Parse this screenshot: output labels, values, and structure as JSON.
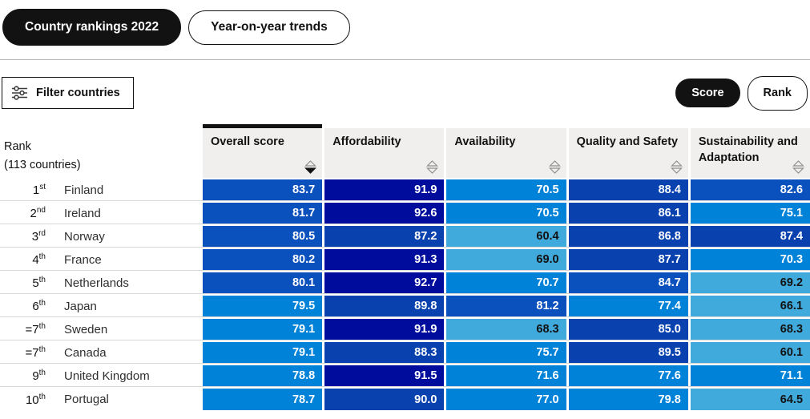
{
  "tabs": [
    {
      "label": "Country rankings 2022",
      "active": true
    },
    {
      "label": "Year-on-year trends",
      "active": false
    }
  ],
  "toolbar": {
    "filter_label": "Filter countries",
    "score_label": "Score",
    "rank_label": "Rank"
  },
  "table": {
    "rank_header_line1": "Rank",
    "rank_header_line2": "(113 countries)",
    "columns": [
      {
        "label": "Overall score",
        "sorted": true,
        "sort_direction": "desc"
      },
      {
        "label": "Affordability",
        "sorted": false
      },
      {
        "label": "Availability",
        "sorted": false
      },
      {
        "label": "Quality and Safety",
        "sorted": false
      },
      {
        "label": "Sustainability and Adaptation",
        "sorted": false
      }
    ],
    "rows": [
      {
        "rank": "1",
        "ordinal": "st",
        "country": "Finland",
        "scores": [
          "83.7",
          "91.9",
          "70.5",
          "88.4",
          "82.6"
        ]
      },
      {
        "rank": "2",
        "ordinal": "nd",
        "country": "Ireland",
        "scores": [
          "81.7",
          "92.6",
          "70.5",
          "86.1",
          "75.1"
        ]
      },
      {
        "rank": "3",
        "ordinal": "rd",
        "country": "Norway",
        "scores": [
          "80.5",
          "87.2",
          "60.4",
          "86.8",
          "87.4"
        ]
      },
      {
        "rank": "4",
        "ordinal": "th",
        "country": "France",
        "scores": [
          "80.2",
          "91.3",
          "69.0",
          "87.7",
          "70.3"
        ]
      },
      {
        "rank": "5",
        "ordinal": "th",
        "country": "Netherlands",
        "scores": [
          "80.1",
          "92.7",
          "70.7",
          "84.7",
          "69.2"
        ]
      },
      {
        "rank": "6",
        "ordinal": "th",
        "country": "Japan",
        "scores": [
          "79.5",
          "89.8",
          "81.2",
          "77.4",
          "66.1"
        ]
      },
      {
        "rank": "=7",
        "ordinal": "th",
        "country": "Sweden",
        "scores": [
          "79.1",
          "91.9",
          "68.3",
          "85.0",
          "68.3"
        ]
      },
      {
        "rank": "=7",
        "ordinal": "th",
        "country": "Canada",
        "scores": [
          "79.1",
          "88.3",
          "75.7",
          "89.5",
          "60.1"
        ]
      },
      {
        "rank": "9",
        "ordinal": "th",
        "country": "United Kingdom",
        "scores": [
          "78.8",
          "91.5",
          "71.6",
          "77.6",
          "71.1"
        ]
      },
      {
        "rank": "10",
        "ordinal": "th",
        "country": "Portugal",
        "scores": [
          "78.7",
          "90.0",
          "77.0",
          "79.8",
          "64.5"
        ]
      }
    ]
  },
  "colors": {
    "accent_black": "#121212",
    "header_gray": "#f0efee",
    "score_bands": [
      {
        "min": 90.5,
        "bg": "#000d9c",
        "text": "#ffffff"
      },
      {
        "min": 85.0,
        "bg": "#0941ae",
        "text": "#ffffff"
      },
      {
        "min": 80.0,
        "bg": "#0a51bd",
        "text": "#ffffff"
      },
      {
        "min": 70.0,
        "bg": "#0082d8",
        "text": "#ffffff"
      },
      {
        "min": 0.0,
        "bg": "#41aadd",
        "text": "#121212"
      }
    ]
  }
}
